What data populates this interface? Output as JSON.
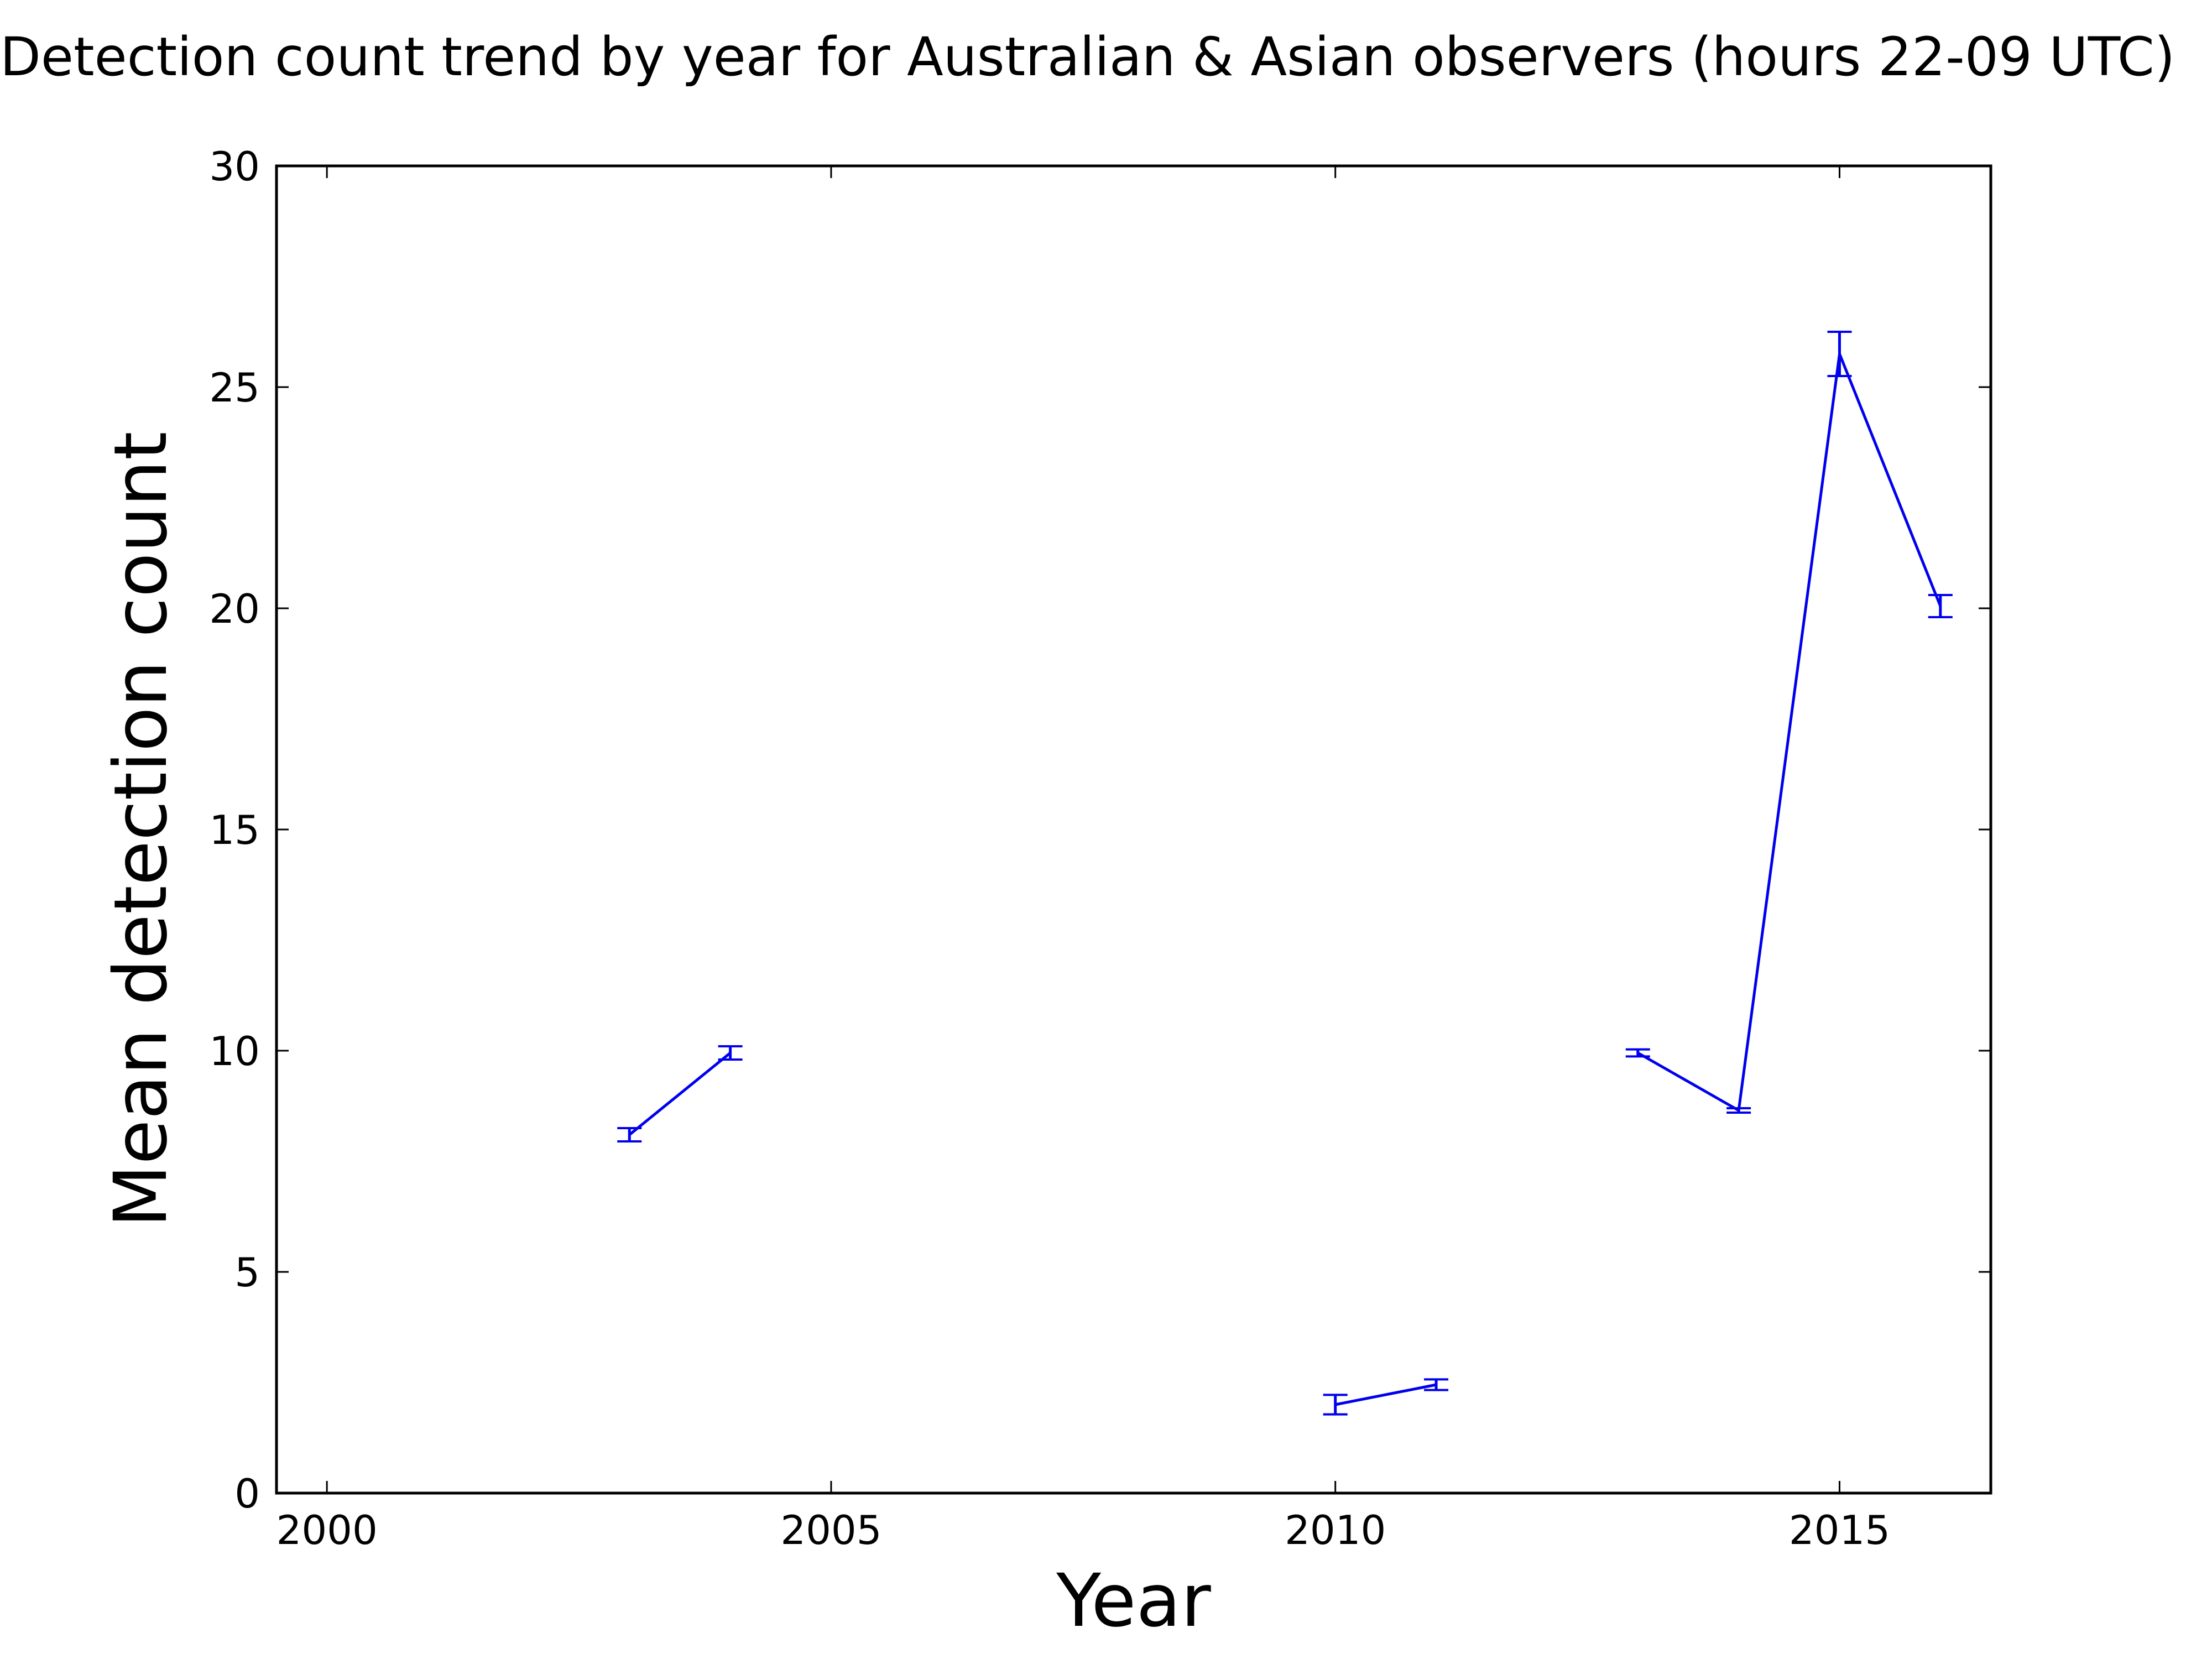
{
  "chart_data": {
    "type": "line",
    "title": "Detection count trend by year for Australian & Asian observers (hours 22-09 UTC)",
    "xlabel": "Year",
    "ylabel": "Mean detection count",
    "xlim": [
      1999.5,
      2016.5
    ],
    "ylim": [
      0,
      30
    ],
    "xticks": [
      2000,
      2005,
      2010,
      2015
    ],
    "yticks": [
      0,
      5,
      10,
      15,
      20,
      25,
      30
    ],
    "grid": false,
    "legend": "none",
    "color": "#0000ee",
    "series": [
      {
        "segments": [
          [
            {
              "x": 2003,
              "y": 8.1,
              "err": 0.15
            },
            {
              "x": 2004,
              "y": 9.95,
              "err": 0.15
            }
          ],
          [
            {
              "x": 2010,
              "y": 2.0,
              "err": 0.22
            },
            {
              "x": 2011,
              "y": 2.45,
              "err": 0.12
            }
          ],
          [
            {
              "x": 2013,
              "y": 9.95,
              "err": 0.08
            },
            {
              "x": 2014,
              "y": 8.65,
              "err": 0.05
            },
            {
              "x": 2015,
              "y": 25.75,
              "err": 0.5
            },
            {
              "x": 2016,
              "y": 20.05,
              "err": 0.25
            }
          ]
        ]
      }
    ]
  }
}
